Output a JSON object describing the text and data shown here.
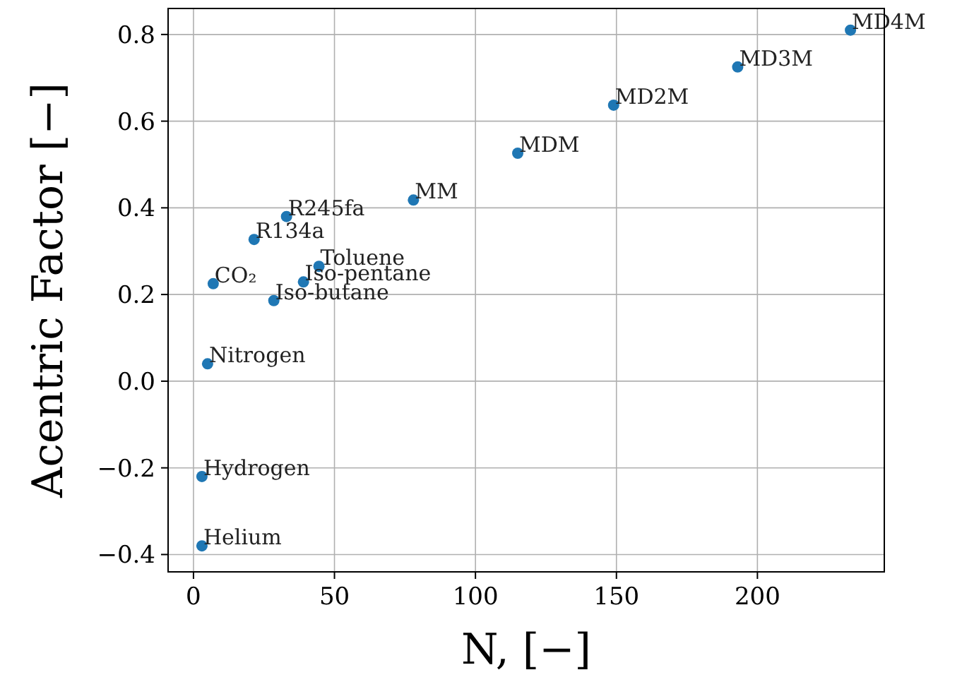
{
  "chart_data": {
    "type": "scatter",
    "xlabel": "N, [−]",
    "ylabel": "Acentric Factor [−]",
    "x": [
      3,
      3,
      5,
      7,
      21.5,
      33,
      28.5,
      39,
      44.5,
      78,
      115,
      149,
      193,
      233
    ],
    "series": [
      {
        "color": "#1f77b4",
        "values": [
          -0.38,
          -0.22,
          0.04,
          0.225,
          0.327,
          0.38,
          0.186,
          0.229,
          0.265,
          0.418,
          0.526,
          0.637,
          0.725,
          0.81
        ]
      }
    ],
    "xlim": [
      -9,
      245
    ],
    "ylim": [
      -0.44,
      0.86
    ],
    "xticks": [
      0,
      50,
      100,
      150,
      200
    ],
    "yticks": [
      {
        "value": -0.4,
        "label": "−0.4"
      },
      {
        "value": -0.2,
        "label": "−0.2"
      },
      {
        "value": 0,
        "label": "0.0"
      },
      0.2,
      0.4,
      0.6,
      0.8
    ],
    "grid": true,
    "marker": "circle",
    "annotations": [
      {
        "text": "Helium",
        "x": 3,
        "y": -0.38
      },
      {
        "text": "Hydrogen",
        "x": 3,
        "y": -0.22
      },
      {
        "text": "Nitrogen",
        "x": 5,
        "y": 0.04
      },
      {
        "text": "CO₂",
        "x": 7,
        "y": 0.225
      },
      {
        "text": "R134a",
        "x": 21.5,
        "y": 0.327
      },
      {
        "text": "R245fa",
        "x": 33,
        "y": 0.38
      },
      {
        "text": "Iso-butane",
        "x": 28.5,
        "y": 0.186
      },
      {
        "text": "Iso-pentane",
        "x": 39,
        "y": 0.229
      },
      {
        "text": "Toluene",
        "x": 44.5,
        "y": 0.265
      },
      {
        "text": "MM",
        "x": 78,
        "y": 0.418
      },
      {
        "text": "MDM",
        "x": 115,
        "y": 0.526
      },
      {
        "text": "MD2M",
        "x": 149,
        "y": 0.637
      },
      {
        "text": "MD3M",
        "x": 193,
        "y": 0.725
      },
      {
        "text": "MD4M",
        "x": 233,
        "y": 0.81
      }
    ]
  }
}
